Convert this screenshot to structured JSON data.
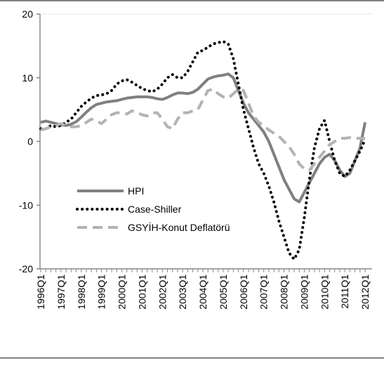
{
  "chart_data": {
    "type": "line",
    "categories": [
      "1996Q1",
      null,
      null,
      null,
      "1997Q1",
      null,
      null,
      null,
      "1998Q1",
      null,
      null,
      null,
      "1999Q1",
      null,
      null,
      null,
      "2000Q1",
      null,
      null,
      null,
      "2001Q1",
      null,
      null,
      null,
      "2002Q1",
      null,
      null,
      null,
      "2003Q1",
      null,
      null,
      null,
      "2004Q1",
      null,
      null,
      null,
      "2005Q1",
      null,
      null,
      null,
      "2006Q1",
      null,
      null,
      null,
      "2007Q1",
      null,
      null,
      null,
      "2008Q1",
      null,
      null,
      null,
      "2009Q1",
      null,
      null,
      null,
      "2010Q1",
      null,
      null,
      null,
      "2011Q1",
      null,
      null,
      null,
      "2012Q1"
    ],
    "series": [
      {
        "name": "HPI",
        "color": "#808080",
        "style": "solid",
        "values": [
          3,
          3.2,
          3,
          2.8,
          2.6,
          2.5,
          2.7,
          3.1,
          3.8,
          4.6,
          5.3,
          5.8,
          6,
          6.2,
          6.3,
          6.4,
          6.6,
          6.8,
          6.9,
          7,
          7,
          7,
          6.9,
          6.7,
          6.6,
          6.9,
          7.3,
          7.6,
          7.6,
          7.5,
          7.7,
          8.2,
          9,
          9.8,
          10.1,
          10.3,
          10.4,
          10.6,
          10,
          8,
          6,
          4.5,
          3.5,
          2.5,
          1.5,
          0,
          -2,
          -4,
          -6,
          -7.5,
          -9,
          -9.5,
          -8,
          -6.5,
          -5,
          -3.5,
          -2.5,
          -2,
          -3,
          -4.5,
          -5.5,
          -5,
          -3,
          -1,
          3
        ]
      },
      {
        "name": "Case-Shiller",
        "color": "#000000",
        "style": "dotted",
        "values": [
          2,
          2,
          2.5,
          2.3,
          2.5,
          3,
          3.5,
          4.5,
          5.5,
          6.2,
          6.8,
          7.2,
          7.3,
          7.5,
          8,
          9,
          9.5,
          9.7,
          9.3,
          8.8,
          8.3,
          8,
          7.8,
          8.2,
          9,
          10,
          10.5,
          10,
          10,
          11,
          12.5,
          14,
          14.3,
          14.8,
          15.3,
          15.5,
          15.7,
          15.3,
          13,
          9,
          5,
          2,
          -1,
          -3.5,
          -5,
          -7,
          -9.5,
          -12.5,
          -15,
          -17.5,
          -18.5,
          -17,
          -12,
          -6,
          -1,
          2,
          3.3,
          0,
          -3,
          -5,
          -5.5,
          -4.5,
          -3,
          -1.5,
          0.3
        ]
      },
      {
        "name": "GSYİH-Konut Deflatörü",
        "color": "#b3b3b3",
        "style": "dashed",
        "values": [
          1.8,
          2,
          2.3,
          2.5,
          2.8,
          2.5,
          2.3,
          2.3,
          2.5,
          3,
          3.5,
          3.2,
          2.8,
          3.5,
          4.2,
          4.5,
          4.5,
          4.3,
          4.8,
          4.5,
          4.2,
          4,
          4.5,
          4.5,
          3.5,
          2.3,
          2,
          3.5,
          4.5,
          4.5,
          4.8,
          5,
          6.5,
          8,
          8.2,
          7.5,
          7,
          6.8,
          7.5,
          8.2,
          8,
          6,
          4,
          3,
          2.5,
          1.8,
          1.3,
          0.8,
          0,
          -0.8,
          -2,
          -3.5,
          -4.3,
          -4.5,
          -3.5,
          -2.5,
          -1.5,
          -0.5,
          0,
          0.5,
          0.5,
          0.6,
          0.5,
          0.5,
          0.4
        ]
      }
    ],
    "ylim": [
      -20,
      20
    ],
    "yticks": [
      20,
      10,
      0,
      -10,
      -20
    ],
    "grid": false,
    "legend": "left"
  }
}
